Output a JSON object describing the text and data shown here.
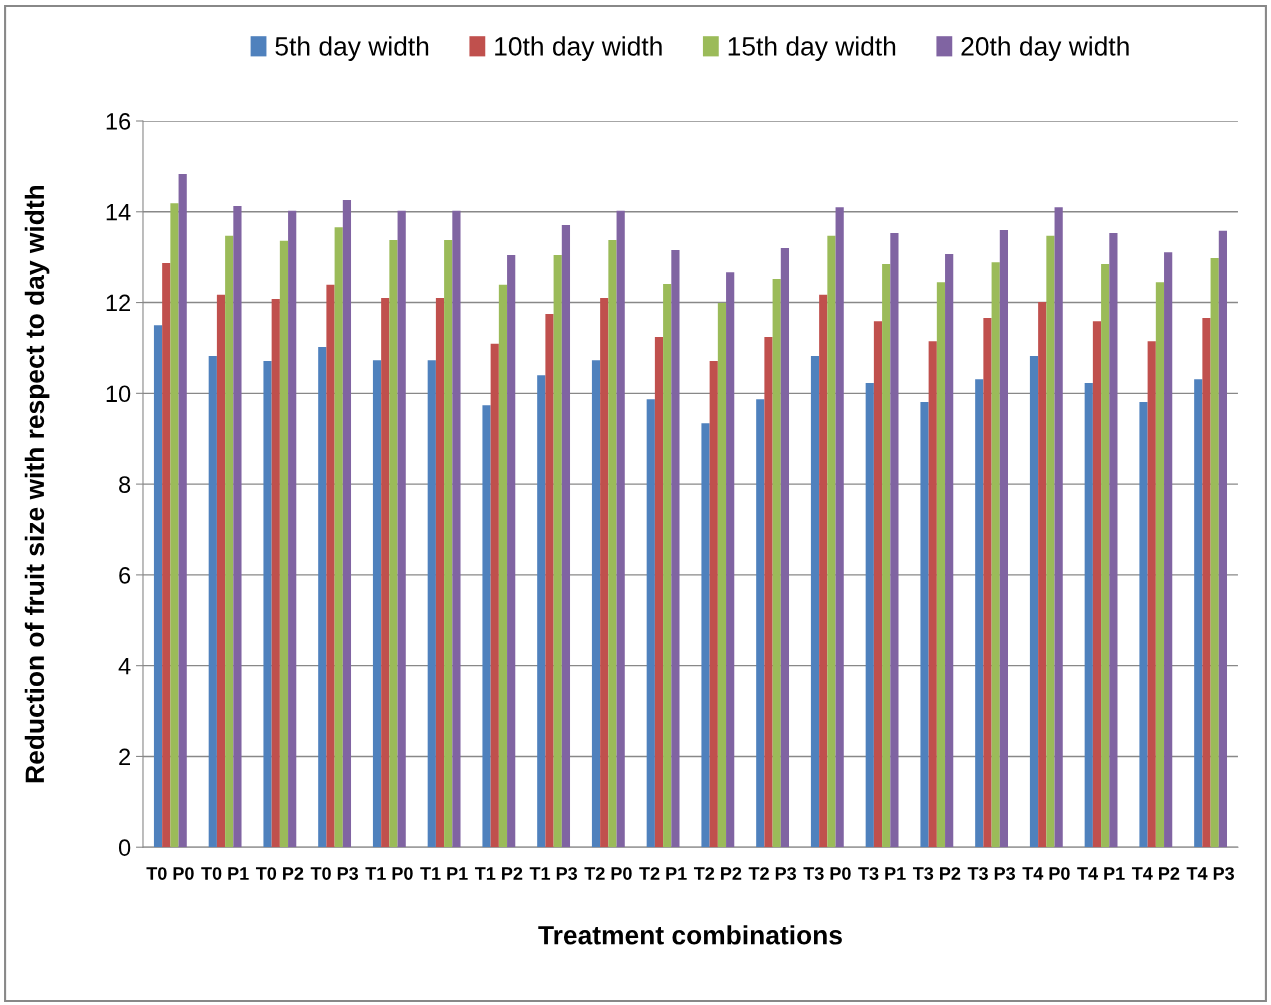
{
  "chart_data": {
    "type": "bar",
    "xlabel": "Treatment combinations",
    "ylabel": "Reduction of fruit size with respect to day width",
    "categories": [
      "T0 P0",
      "T0 P1",
      "T0 P2",
      "T0 P3",
      "T1 P0",
      "T1 P1",
      "T1 P2",
      "T1 P3",
      "T2 P0",
      "T2 P1",
      "T2 P2",
      "T2 P3",
      "T3 P0",
      "T3 P1",
      "T3 P2",
      "T3 P3",
      "T4 P0",
      "T4 P1",
      "T4 P2",
      "T4 P3"
    ],
    "series": [
      {
        "name": "5th day width",
        "color": "#4f81bd",
        "values": [
          11.5,
          10.82,
          10.71,
          11.02,
          10.73,
          10.73,
          9.74,
          10.4,
          10.73,
          9.87,
          9.34,
          9.87,
          10.82,
          10.23,
          9.81,
          10.31,
          10.82,
          10.23,
          9.81,
          10.31
        ]
      },
      {
        "name": "10th day width",
        "color": "#c0504d",
        "values": [
          12.87,
          12.17,
          12.08,
          12.39,
          12.1,
          12.1,
          11.09,
          11.75,
          12.1,
          11.24,
          10.71,
          11.24,
          12.17,
          11.59,
          11.15,
          11.66,
          12.01,
          11.59,
          11.15,
          11.66
        ]
      },
      {
        "name": "15th day width",
        "color": "#9bbb59",
        "values": [
          14.19,
          13.47,
          13.36,
          13.66,
          13.38,
          13.38,
          12.39,
          13.05,
          13.38,
          12.41,
          11.99,
          12.52,
          13.47,
          12.85,
          12.45,
          12.89,
          13.47,
          12.85,
          12.45,
          12.98
        ]
      },
      {
        "name": "20th day width",
        "color": "#8064a2",
        "values": [
          14.83,
          14.13,
          14.02,
          14.26,
          14.02,
          14.02,
          13.05,
          13.71,
          14.02,
          13.16,
          12.67,
          13.2,
          14.1,
          13.53,
          13.07,
          13.6,
          14.1,
          13.53,
          13.11,
          13.58
        ]
      }
    ],
    "ylim": [
      0,
      16
    ],
    "yticks": [
      0,
      2,
      4,
      6,
      8,
      10,
      12,
      14,
      16
    ],
    "grid": "y",
    "legend": "top"
  }
}
